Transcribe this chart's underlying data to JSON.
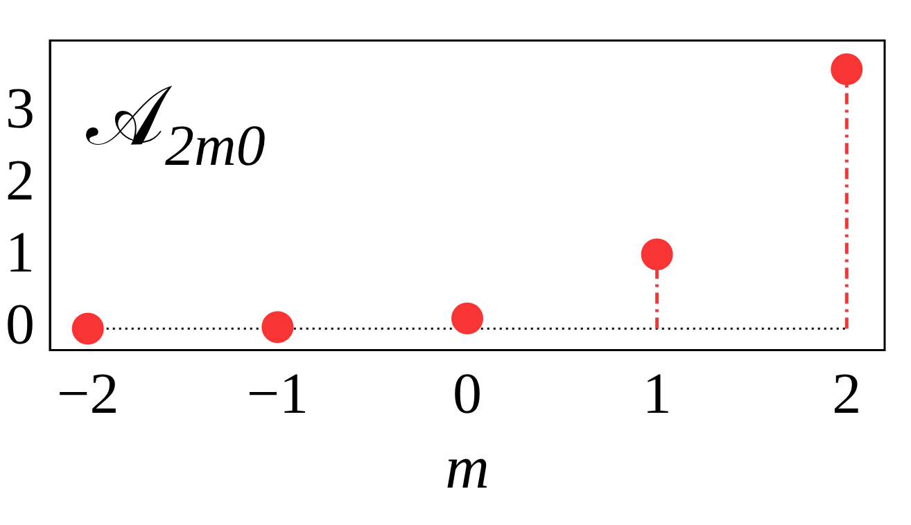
{
  "chart_data": {
    "type": "lollipop",
    "title": "𝒜$_{2m0}$",
    "xlabel": "m",
    "x": [
      -2,
      -1,
      0,
      1,
      2
    ],
    "series": [
      {
        "color": "#f93434",
        "values": [
          0,
          0.02,
          0.14,
          1.03,
          3.6
        ],
        "line_style": "dashed"
      }
    ],
    "xlim": [
      -2.2,
      2.2
    ],
    "xticks": [
      {
        "value": -2,
        "label": "−2"
      },
      {
        "value": -1,
        "label": "−1"
      },
      0,
      1,
      2
    ],
    "ylim": [
      -0.3,
      4.0
    ],
    "yticks": [
      0,
      1,
      2,
      3
    ],
    "ref_lines": [
      {
        "axis": "y",
        "value": 0,
        "color": "#000000",
        "line_style": "dotted"
      }
    ],
    "marker": "circle",
    "grid": false,
    "legend": false
  }
}
